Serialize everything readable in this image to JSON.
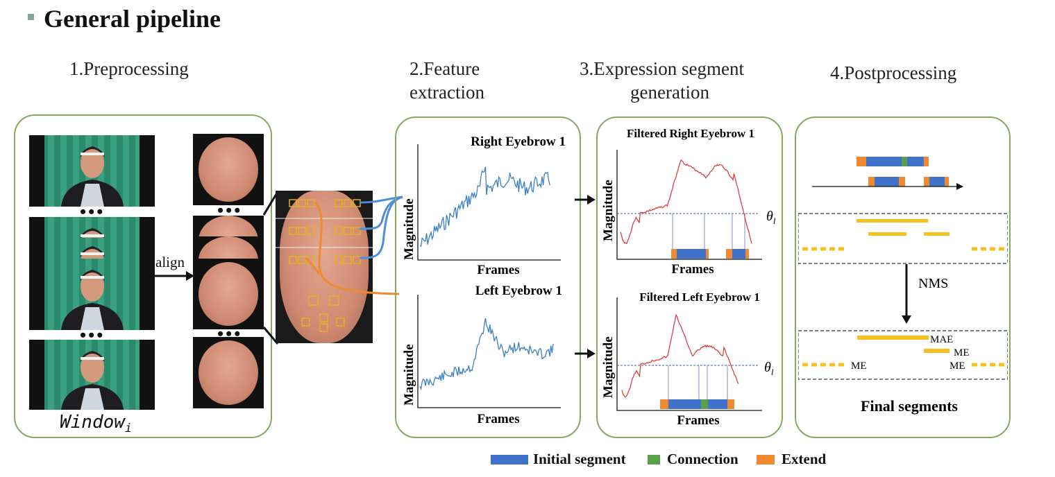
{
  "title": "General pipeline",
  "steps": {
    "s1": "1.Preprocessing",
    "s2_l1": "2.Feature",
    "s2_l2": "extraction",
    "s3_l1": "3.Expression segment",
    "s3_l2": "generation",
    "s4": "4.Postprocessing"
  },
  "preprocess": {
    "align_label": "align",
    "window_label": "Window",
    "window_sub": "i",
    "ellipsis": "•••"
  },
  "features": {
    "chart1_title": "Right Eyebrow 1",
    "chart2_title": "Left Eyebrow 1",
    "ylabel": "Magnitude",
    "xlabel": "Frames"
  },
  "segments": {
    "chart1_title": "Filtered Right Eyebrow 1",
    "chart2_title": "Filtered Left Eyebrow 1",
    "ylabel": "Magnitude",
    "xlabel": "Frames",
    "threshold_label": "θ",
    "threshold_sub": "l"
  },
  "postprocess": {
    "nms_label": "NMS",
    "final_label": "Final segments",
    "mae": "MAE",
    "me1": "ME",
    "me2": "ME",
    "me3": "ME"
  },
  "legend": {
    "initial": "Initial segment",
    "connection": "Connection",
    "extend": "Extend"
  },
  "colors": {
    "panel_border": "#86a860",
    "curve_blue": "#3a7fc4",
    "curve_red": "#e03030",
    "seg_blue": "#3f73c9",
    "seg_green": "#5aa04a",
    "seg_orange": "#f08a30",
    "seg_yellow": "#f5c020",
    "link_blue": "#4a8fd8",
    "link_orange": "#f08a30"
  }
}
